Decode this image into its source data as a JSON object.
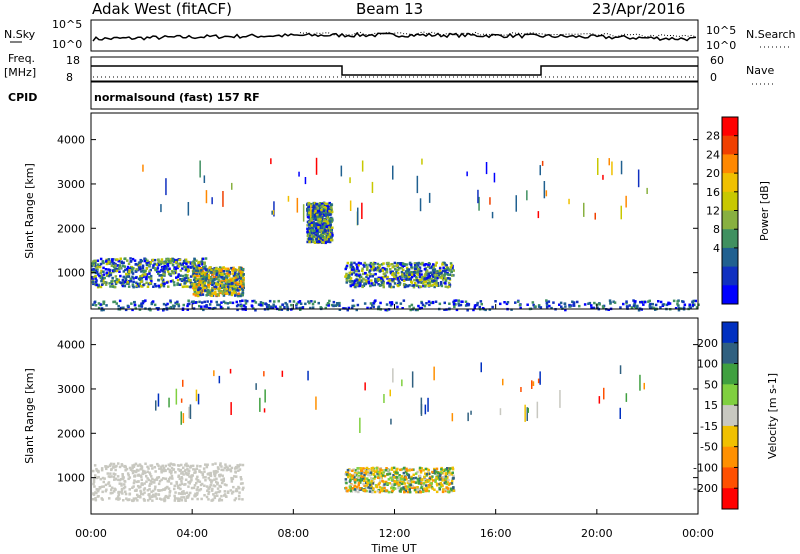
{
  "header": {
    "title": "Adak West (fitACF)",
    "beam": "Beam 13",
    "date": "23/Apr/2016"
  },
  "strips": {
    "nsky_label": "N.Sky",
    "nsky_ticks": [
      "10^5",
      "10^0"
    ],
    "nsearch_label": "N.Search",
    "nsearch_ticks": [
      "10^5",
      "10^0"
    ],
    "freq_label_line1": "Freq.",
    "freq_label_line2": "[MHz]",
    "freq_ticks": [
      "18",
      "8"
    ],
    "nave_label": "Nave",
    "nave_ticks": [
      "60",
      "0"
    ],
    "cpid_label": "CPID",
    "cpid_text": "normalsound (fast) 157 RF"
  },
  "chart_data": [
    {
      "type": "heatmap",
      "panel": "power",
      "ylabel": "Slant Range [km]",
      "yticks": [
        1000,
        2000,
        3000,
        4000
      ],
      "ylim": [
        180,
        4600
      ],
      "xlabel": "Time UT",
      "xticks": [
        "00:00",
        "04:00",
        "08:00",
        "12:00",
        "16:00",
        "20:00",
        "00:00"
      ],
      "xlim_hours": [
        0,
        24
      ],
      "colorbar": {
        "label": "Power [dB]",
        "ticks": [
          "28",
          "24",
          "20",
          "16",
          "12",
          "8",
          "4"
        ],
        "colors": [
          "#ff0000",
          "#f04000",
          "#ff8800",
          "#f0c000",
          "#c8c800",
          "#88b040",
          "#409060",
          "#206090",
          "#1030c0",
          "#0000ff"
        ]
      },
      "regions": [
        {
          "t": [
            0.0,
            4.5
          ],
          "range_km": [
            700,
            1350
          ],
          "level": "6-20 dB"
        },
        {
          "t": [
            4.0,
            6.0
          ],
          "range_km": [
            500,
            1150
          ],
          "level": "8-24 dB"
        },
        {
          "t": [
            10.0,
            14.3
          ],
          "range_km": [
            700,
            1250
          ],
          "level": "4-16 dB"
        },
        {
          "t": [
            8.5,
            9.5
          ],
          "range_km": [
            1700,
            2600
          ],
          "level": "4-8 dB"
        },
        {
          "t": [
            0.0,
            24.0
          ],
          "range_km": [
            180,
            400
          ],
          "level": "4-12 dB"
        }
      ]
    },
    {
      "type": "heatmap",
      "panel": "velocity",
      "ylabel": "Slant Range [km]",
      "yticks": [
        1000,
        2000,
        3000,
        4000
      ],
      "ylim": [
        180,
        4600
      ],
      "xlabel": "Time UT",
      "xticks": [
        "00:00",
        "04:00",
        "08:00",
        "12:00",
        "16:00",
        "20:00",
        "00:00"
      ],
      "xlim_hours": [
        0,
        24
      ],
      "colorbar": {
        "label": "Velocity [m s-1]",
        "ticks": [
          "200",
          "100",
          "50",
          "15",
          "-15",
          "-50",
          "-100",
          "-200"
        ],
        "colors": [
          "#0030c0",
          "#306080",
          "#40a040",
          "#80d040",
          "#c8c8c0",
          "#f0c000",
          "#ff9000",
          "#ff5000",
          "#ff0000"
        ]
      },
      "regions": [
        {
          "t": [
            0.0,
            6.0
          ],
          "range_km": [
            500,
            1350
          ],
          "velocity": "ground scatter"
        },
        {
          "t": [
            10.0,
            14.3
          ],
          "range_km": [
            700,
            1250
          ],
          "velocity": "-100 to 50"
        }
      ]
    }
  ]
}
